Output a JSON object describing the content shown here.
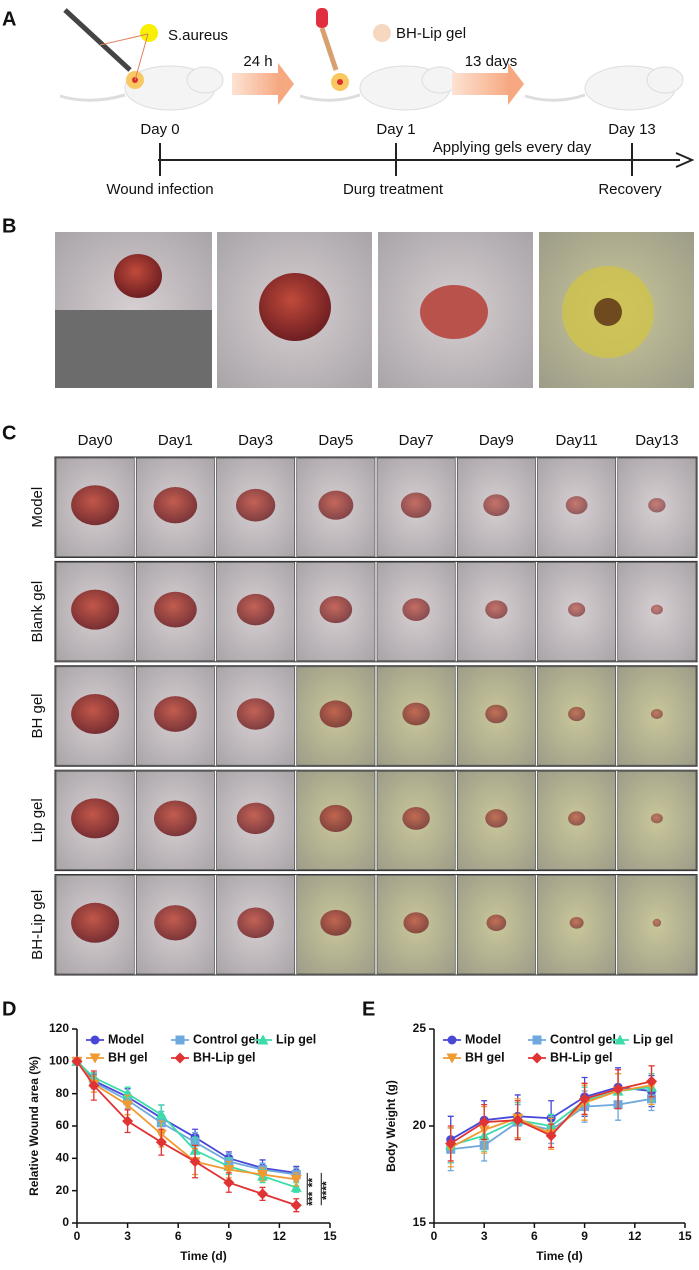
{
  "panel_labels": [
    "A",
    "B",
    "C",
    "D",
    "E"
  ],
  "panel_a": {
    "bacteria": "S.aureus",
    "step1": "24 h",
    "gel": "BH-Lip gel",
    "step2": "13 days",
    "days": [
      "Day 0",
      "Day 1",
      "Day 13"
    ],
    "regimen": "Applying gels every day",
    "stages": [
      "Wound infection",
      "Durg treatment",
      "Recovery"
    ]
  },
  "panel_c": {
    "columns": [
      "Day0",
      "Day1",
      "Day3",
      "Day5",
      "Day7",
      "Day9",
      "Day11",
      "Day13"
    ],
    "rows": [
      "Model",
      "Blank gel",
      "BH gel",
      "Lip gel",
      "BH-Lip gel"
    ]
  },
  "chart_data": [
    {
      "type": "line",
      "ylabel": "Relative Wound area (%)",
      "xlabel": "Time (d)",
      "x": [
        0,
        1,
        3,
        5,
        7,
        9,
        11,
        13
      ],
      "series": [
        {
          "name": "Model",
          "color": "#4848d8",
          "marker": "circle",
          "values": [
            100,
            88,
            78,
            65,
            53,
            40,
            34,
            31
          ],
          "errors": [
            1,
            4,
            5,
            8,
            5,
            4,
            5,
            4
          ]
        },
        {
          "name": "Control gel",
          "color": "#6ea8dc",
          "marker": "square",
          "values": [
            100,
            87,
            76,
            62,
            50,
            38,
            33,
            30
          ],
          "errors": [
            1,
            4,
            5,
            7,
            6,
            5,
            4,
            4
          ]
        },
        {
          "name": "Lip gel",
          "color": "#3cdcaa",
          "marker": "triangle-up",
          "values": [
            100,
            90,
            80,
            67,
            45,
            35,
            29,
            22
          ],
          "errors": [
            1,
            3,
            4,
            6,
            8,
            5,
            4,
            3
          ]
        },
        {
          "name": "BH gel",
          "color": "#f09a30",
          "marker": "triangle-down",
          "values": [
            100,
            86,
            73,
            55,
            38,
            33,
            30,
            27
          ],
          "errors": [
            1,
            5,
            6,
            8,
            8,
            5,
            4,
            4
          ]
        },
        {
          "name": "BH-Lip gel",
          "color": "#e03434",
          "marker": "diamond",
          "values": [
            100,
            85,
            63,
            50,
            38,
            25,
            18,
            11
          ],
          "errors": [
            1,
            9,
            7,
            8,
            10,
            6,
            4,
            4
          ]
        }
      ],
      "annotations": [
        "**",
        "***",
        "****"
      ],
      "xlim": [
        0,
        15
      ],
      "xticks": [
        0,
        3,
        6,
        9,
        12,
        15
      ],
      "ylim": [
        0,
        120
      ],
      "yticks": [
        0,
        20,
        40,
        60,
        80,
        100,
        120
      ]
    },
    {
      "type": "line",
      "ylabel": "Body Weight (g)",
      "xlabel": "Time (d)",
      "x": [
        1,
        3,
        5,
        7,
        9,
        11,
        13
      ],
      "series": [
        {
          "name": "Model",
          "color": "#4848d8",
          "marker": "circle",
          "values": [
            19.3,
            20.3,
            20.5,
            20.4,
            21.5,
            22.0,
            21.8
          ],
          "errors": [
            1.2,
            1.0,
            1.1,
            0.9,
            1.0,
            1.0,
            0.8
          ]
        },
        {
          "name": "Control gel",
          "color": "#6ea8dc",
          "marker": "square",
          "values": [
            18.8,
            19.0,
            20.2,
            19.8,
            21.0,
            21.1,
            21.4
          ],
          "errors": [
            1.1,
            0.8,
            0.9,
            0.7,
            0.8,
            0.8,
            0.6
          ]
        },
        {
          "name": "Lip gel",
          "color": "#3cdcaa",
          "marker": "triangle-up",
          "values": [
            19.0,
            19.5,
            20.3,
            20.0,
            21.3,
            21.8,
            22.0
          ],
          "errors": [
            0.9,
            0.8,
            0.9,
            0.6,
            0.7,
            0.9,
            0.7
          ]
        },
        {
          "name": "BH gel",
          "color": "#f09a30",
          "marker": "triangle-down",
          "values": [
            18.9,
            19.8,
            20.4,
            19.6,
            21.2,
            21.8,
            22.1
          ],
          "errors": [
            1.0,
            1.2,
            1.0,
            0.8,
            0.9,
            0.9,
            1.0
          ]
        },
        {
          "name": "BH-Lip gel",
          "color": "#e03434",
          "marker": "diamond",
          "values": [
            19.1,
            20.2,
            20.3,
            19.5,
            21.4,
            21.9,
            22.3
          ],
          "errors": [
            0.9,
            0.9,
            1.0,
            0.6,
            0.8,
            1.0,
            0.8
          ]
        }
      ],
      "xlim": [
        0,
        15
      ],
      "xticks": [
        0,
        3,
        6,
        9,
        12,
        15
      ],
      "ylim": [
        15,
        25
      ],
      "yticks": [
        15,
        20,
        25
      ]
    }
  ]
}
